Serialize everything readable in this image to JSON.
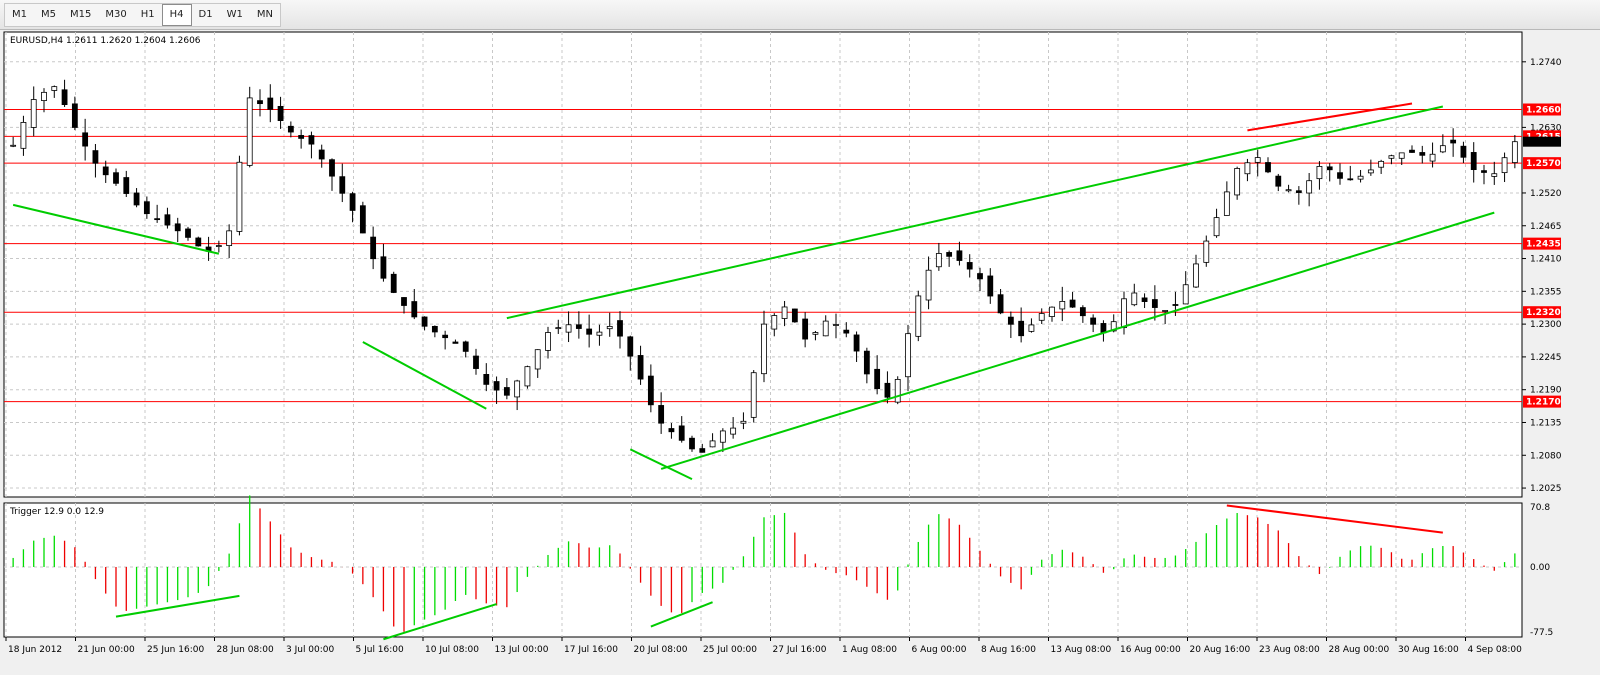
{
  "toolbar": {
    "timeframes": [
      "M1",
      "M5",
      "M15",
      "M30",
      "H1",
      "H4",
      "D1",
      "W1",
      "MN"
    ],
    "active": "H4"
  },
  "main_chart": {
    "header": "EURUSD,H4  1.2611 1.2620 1.2604 1.2606",
    "y_ticks": [
      "1.2740",
      "1.2630",
      "1.2520",
      "1.2465",
      "1.2410",
      "1.2355",
      "1.2300",
      "1.2245",
      "1.2190",
      "1.2135",
      "1.2080",
      "1.2025"
    ],
    "levels": [
      {
        "label": "1.2660",
        "price": 1.266
      },
      {
        "label": "1.2615",
        "price": 1.2615
      },
      {
        "label": "1.2570",
        "price": 1.257
      },
      {
        "label": "1.2435",
        "price": 1.2435
      },
      {
        "label": "1.2320",
        "price": 1.232
      },
      {
        "label": "1.2170",
        "price": 1.217
      }
    ],
    "current_price": 1.2606,
    "colors": {
      "level": "#ff0000",
      "trend": "#00cc00",
      "divergence": "#ff0000",
      "bull": "#00a000",
      "bear": "#000000",
      "wick": "#000000"
    }
  },
  "indicator": {
    "header": "Trigger 12.9 0.0 12.9",
    "y_ticks": [
      "70.8",
      "0.00",
      "-77.5"
    ],
    "colors": {
      "up": "#00dd00",
      "down": "#ee0000"
    }
  },
  "x_labels": [
    "18 Jun 2012",
    "21 Jun 00:00",
    "25 Jun 16:00",
    "28 Jun 08:00",
    "3 Jul 00:00",
    "5 Jul 16:00",
    "10 Jul 08:00",
    "13 Jul 00:00",
    "17 Jul 16:00",
    "20 Jul 08:00",
    "25 Jul 00:00",
    "27 Jul 16:00",
    "1 Aug 08:00",
    "6 Aug 00:00",
    "8 Aug 16:00",
    "13 Aug 08:00",
    "16 Aug 00:00",
    "20 Aug 16:00",
    "23 Aug 08:00",
    "28 Aug 00:00",
    "30 Aug 16:00",
    "4 Sep 08:00"
  ],
  "chart_data": {
    "type": "candlestick",
    "symbol": "EURUSD",
    "timeframe": "H4",
    "ohlc_last": {
      "open": 1.2611,
      "high": 1.262,
      "low": 1.2604,
      "close": 1.2606
    },
    "ylim": [
      1.201,
      1.279
    ],
    "price_path": [
      1.26,
      1.268,
      1.27,
      1.262,
      1.256,
      1.253,
      1.249,
      1.247,
      1.245,
      1.242,
      1.244,
      1.268,
      1.266,
      1.262,
      1.26,
      1.254,
      1.248,
      1.239,
      1.234,
      1.23,
      1.228,
      1.226,
      1.22,
      1.218,
      1.223,
      1.229,
      1.23,
      1.228,
      1.23,
      1.223,
      1.214,
      1.211,
      1.208,
      1.212,
      1.213,
      1.23,
      1.233,
      1.227,
      1.231,
      1.228,
      1.22,
      1.217,
      1.233,
      1.242,
      1.241,
      1.238,
      1.232,
      1.228,
      1.232,
      1.234,
      1.231,
      1.228,
      1.236,
      1.233,
      1.232,
      1.239,
      1.247,
      1.256,
      1.258,
      1.253,
      1.252,
      1.257,
      1.254,
      1.255,
      1.258,
      1.259,
      1.258,
      1.261,
      1.256,
      1.255,
      1.2606
    ],
    "trendlines": [
      {
        "color": "green",
        "from": [
          0,
          1.25
        ],
        "to": [
          20,
          1.2418
        ]
      },
      {
        "color": "green",
        "from": [
          34,
          1.227
        ],
        "to": [
          46,
          1.2158
        ]
      },
      {
        "color": "green",
        "from": [
          48,
          1.231
        ],
        "to": [
          139,
          1.2665
        ]
      },
      {
        "color": "green",
        "from": [
          63,
          1.2057
        ],
        "to": [
          144,
          1.2487
        ]
      },
      {
        "color": "green",
        "from": [
          60,
          1.209
        ],
        "to": [
          66,
          1.204
        ]
      },
      {
        "color": "red",
        "from": [
          120,
          1.2625
        ],
        "to": [
          136,
          1.267
        ]
      }
    ],
    "indicator_series_name": "Trigger",
    "indicator_ylim": [
      -77.5,
      70.8
    ],
    "indicator_path": [
      10,
      30,
      35,
      20,
      -20,
      -50,
      -45,
      -40,
      -35,
      -25,
      10,
      80,
      50,
      20,
      10,
      5,
      -10,
      -40,
      -75,
      -60,
      -50,
      -30,
      -40,
      -45,
      -10,
      15,
      30,
      20,
      25,
      -10,
      -40,
      -55,
      -30,
      -20,
      10,
      55,
      60,
      10,
      -5,
      -10,
      -25,
      -40,
      20,
      60,
      50,
      20,
      -10,
      -25,
      10,
      20,
      10,
      -10,
      15,
      10,
      10,
      25,
      45,
      60,
      55,
      40,
      10,
      -10,
      15,
      25,
      20,
      5,
      20,
      25,
      10,
      -5,
      15
    ],
    "indicator_lines": [
      {
        "color": "green",
        "from": [
          10,
          -55
        ],
        "to": [
          22,
          -32
        ]
      },
      {
        "color": "green",
        "from": [
          36,
          -80
        ],
        "to": [
          47,
          -41
        ]
      },
      {
        "color": "green",
        "from": [
          62,
          -66
        ],
        "to": [
          68,
          -39
        ]
      },
      {
        "color": "red",
        "from": [
          118,
          68
        ],
        "to": [
          139,
          38
        ]
      }
    ]
  }
}
